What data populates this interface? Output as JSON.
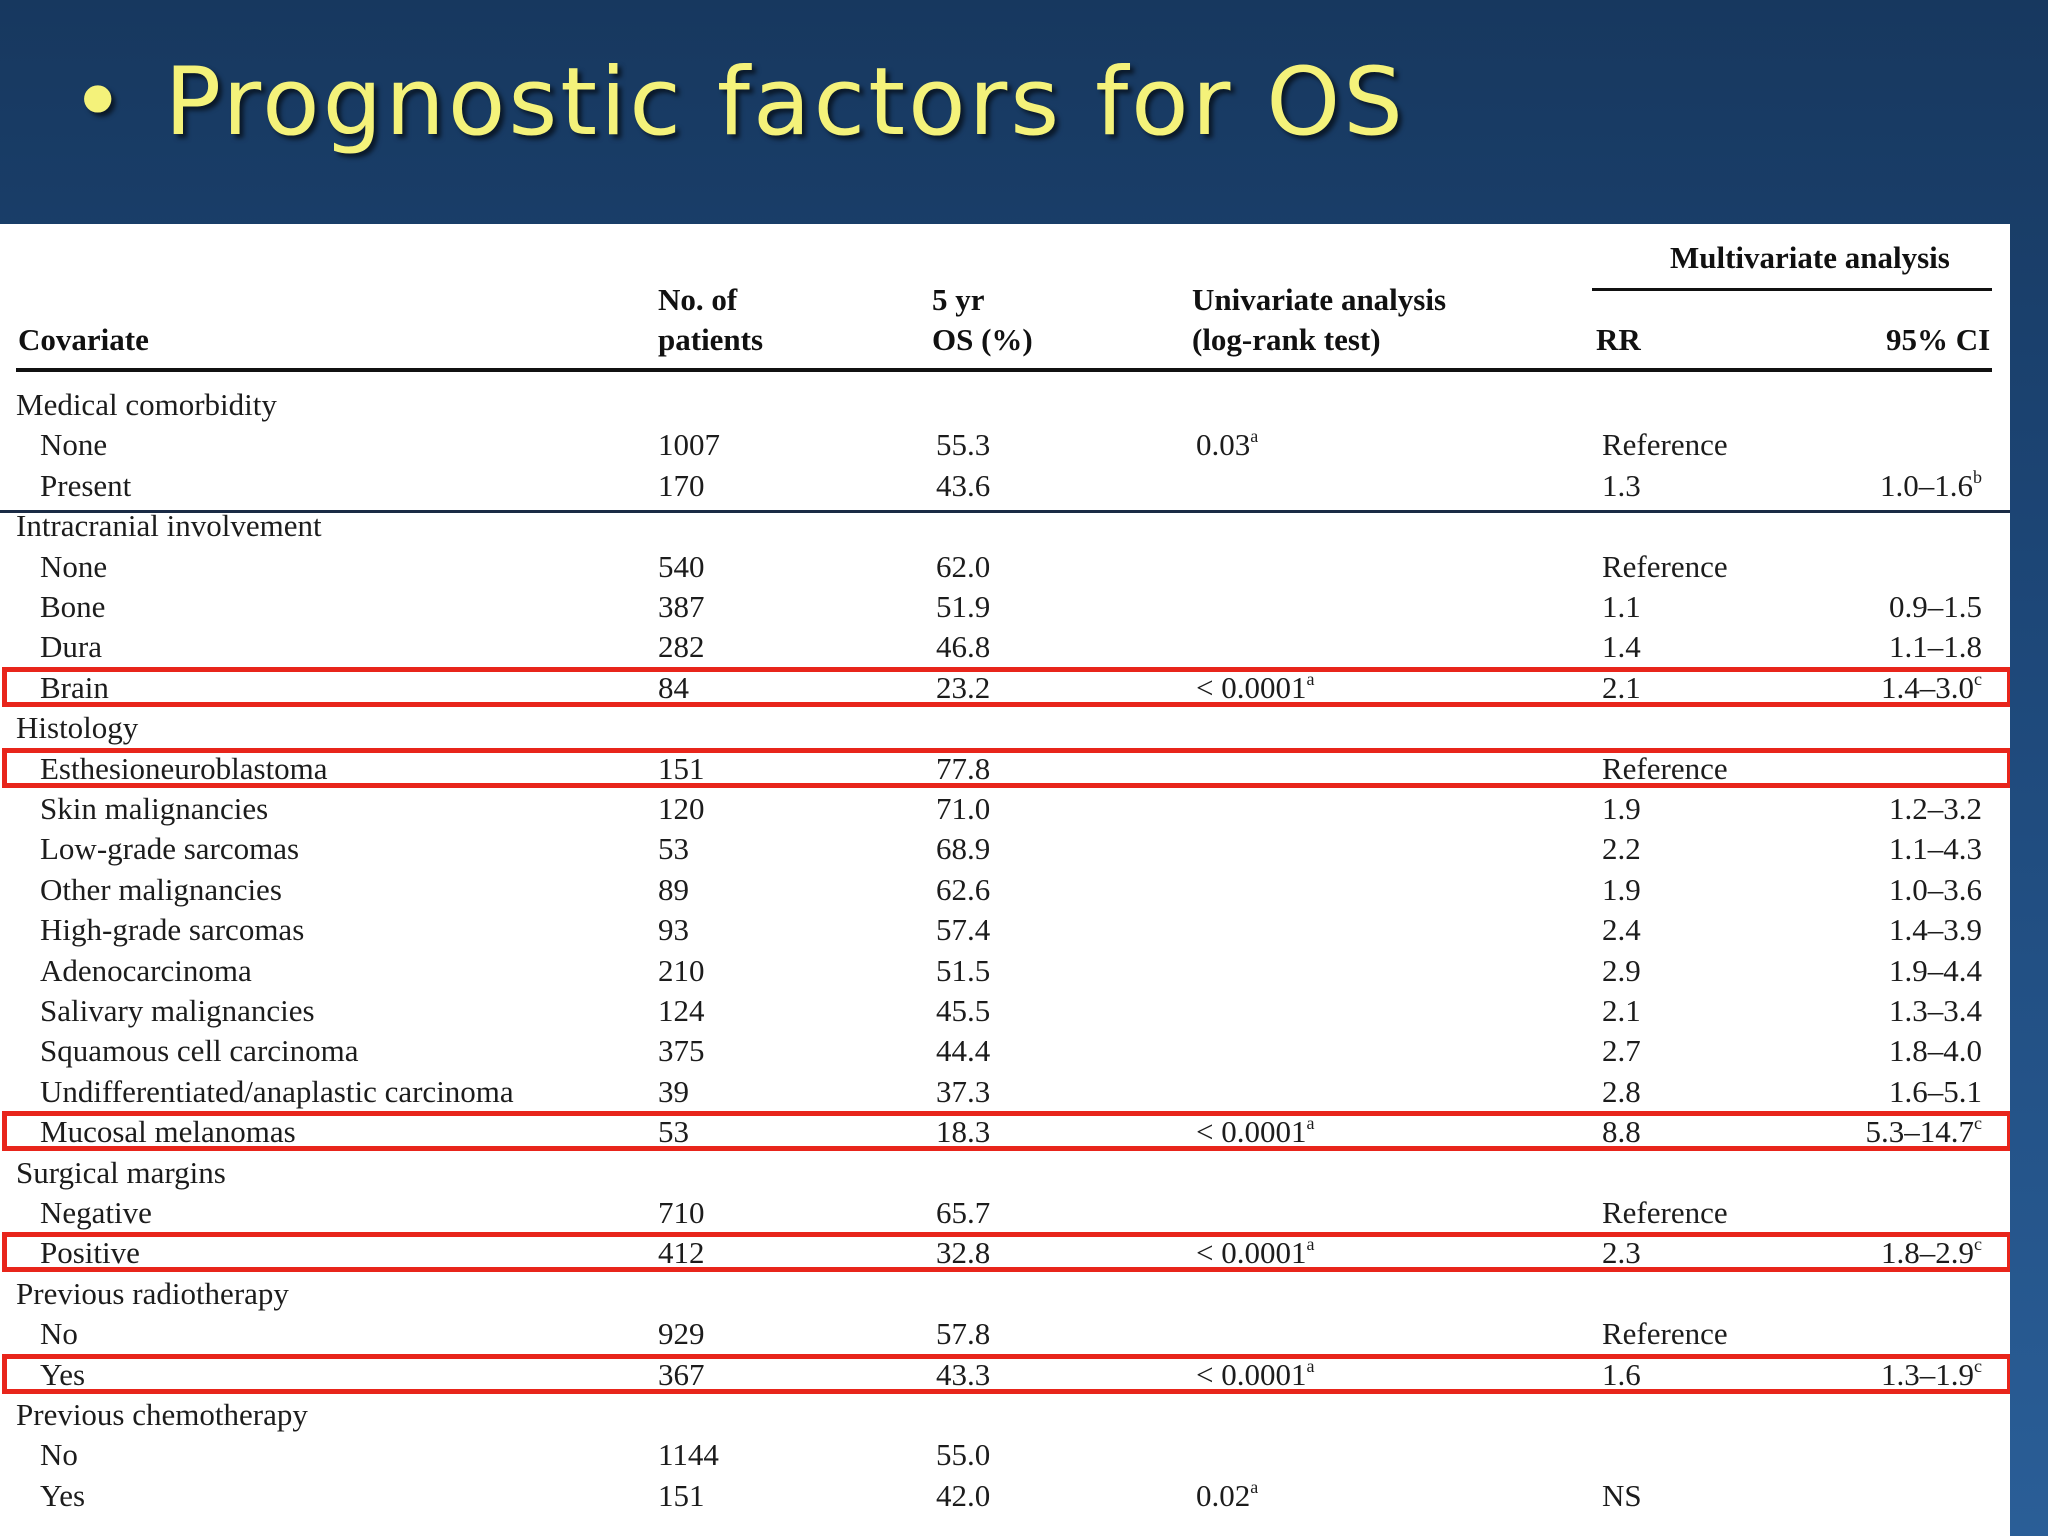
{
  "slide": {
    "title": "Prognostic factors for OS",
    "bullet": "•"
  },
  "table": {
    "headers": {
      "covariate": "Covariate",
      "patients_line1": "No. of",
      "patients_line2": "patients",
      "os_line1": "5 yr",
      "os_line2": "OS (%)",
      "univariate_line1": "Univariate analysis",
      "univariate_line2": "(log-rank test)",
      "multivariate": "Multivariate analysis",
      "rr": "RR",
      "ci": "95% CI"
    },
    "rows": [
      {
        "type": "group",
        "covariate": "Medical comorbidity"
      },
      {
        "type": "item",
        "covariate": "None",
        "n": "1007",
        "os": "55.3",
        "uni": "0.03",
        "uni_sup": "a",
        "rr": "Reference",
        "ci": "",
        "ci_sup": ""
      },
      {
        "type": "item",
        "covariate": "Present",
        "n": "170",
        "os": "43.6",
        "uni": "",
        "uni_sup": "",
        "rr": "1.3",
        "ci": "1.0–1.6",
        "ci_sup": "b"
      },
      {
        "type": "group",
        "covariate": "Intracranial involvement"
      },
      {
        "type": "item",
        "covariate": "None",
        "n": "540",
        "os": "62.0",
        "uni": "",
        "uni_sup": "",
        "rr": "Reference",
        "ci": "",
        "ci_sup": ""
      },
      {
        "type": "item",
        "covariate": "Bone",
        "n": "387",
        "os": "51.9",
        "uni": "",
        "uni_sup": "",
        "rr": "1.1",
        "ci": "0.9–1.5",
        "ci_sup": ""
      },
      {
        "type": "item",
        "covariate": "Dura",
        "n": "282",
        "os": "46.8",
        "uni": "",
        "uni_sup": "",
        "rr": "1.4",
        "ci": "1.1–1.8",
        "ci_sup": ""
      },
      {
        "type": "item",
        "covariate": "Brain",
        "n": "84",
        "os": "23.2",
        "uni": "< 0.0001",
        "uni_sup": "a",
        "rr": "2.1",
        "ci": "1.4–3.0",
        "ci_sup": "c",
        "highlighted": true
      },
      {
        "type": "group",
        "covariate": "Histology"
      },
      {
        "type": "item",
        "covariate": "Esthesioneuroblastoma",
        "n": "151",
        "os": "77.8",
        "uni": "",
        "uni_sup": "",
        "rr": "Reference",
        "ci": "",
        "ci_sup": "",
        "highlighted": true
      },
      {
        "type": "item",
        "covariate": "Skin malignancies",
        "n": "120",
        "os": "71.0",
        "uni": "",
        "uni_sup": "",
        "rr": "1.9",
        "ci": "1.2–3.2",
        "ci_sup": ""
      },
      {
        "type": "item",
        "covariate": "Low-grade sarcomas",
        "n": "53",
        "os": "68.9",
        "uni": "",
        "uni_sup": "",
        "rr": "2.2",
        "ci": "1.1–4.3",
        "ci_sup": ""
      },
      {
        "type": "item",
        "covariate": "Other malignancies",
        "n": "89",
        "os": "62.6",
        "uni": "",
        "uni_sup": "",
        "rr": "1.9",
        "ci": "1.0–3.6",
        "ci_sup": ""
      },
      {
        "type": "item",
        "covariate": "High-grade sarcomas",
        "n": "93",
        "os": "57.4",
        "uni": "",
        "uni_sup": "",
        "rr": "2.4",
        "ci": "1.4–3.9",
        "ci_sup": ""
      },
      {
        "type": "item",
        "covariate": "Adenocarcinoma",
        "n": "210",
        "os": "51.5",
        "uni": "",
        "uni_sup": "",
        "rr": "2.9",
        "ci": "1.9–4.4",
        "ci_sup": ""
      },
      {
        "type": "item",
        "covariate": "Salivary malignancies",
        "n": "124",
        "os": "45.5",
        "uni": "",
        "uni_sup": "",
        "rr": "2.1",
        "ci": "1.3–3.4",
        "ci_sup": ""
      },
      {
        "type": "item",
        "covariate": "Squamous cell carcinoma",
        "n": "375",
        "os": "44.4",
        "uni": "",
        "uni_sup": "",
        "rr": "2.7",
        "ci": "1.8–4.0",
        "ci_sup": ""
      },
      {
        "type": "item",
        "covariate": "Undifferentiated/anaplastic carcinoma",
        "n": "39",
        "os": "37.3",
        "uni": "",
        "uni_sup": "",
        "rr": "2.8",
        "ci": "1.6–5.1",
        "ci_sup": ""
      },
      {
        "type": "item",
        "covariate": "Mucosal melanomas",
        "n": "53",
        "os": "18.3",
        "uni": "< 0.0001",
        "uni_sup": "a",
        "rr": "8.8",
        "ci": "5.3–14.7",
        "ci_sup": "c",
        "highlighted": true
      },
      {
        "type": "group",
        "covariate": "Surgical margins"
      },
      {
        "type": "item",
        "covariate": "Negative",
        "n": "710",
        "os": "65.7",
        "uni": "",
        "uni_sup": "",
        "rr": "Reference",
        "ci": "",
        "ci_sup": ""
      },
      {
        "type": "item",
        "covariate": "Positive",
        "n": "412",
        "os": "32.8",
        "uni": "< 0.0001",
        "uni_sup": "a",
        "rr": "2.3",
        "ci": "1.8–2.9",
        "ci_sup": "c",
        "highlighted": true
      },
      {
        "type": "group",
        "covariate": "Previous radiotherapy"
      },
      {
        "type": "item",
        "covariate": "No",
        "n": "929",
        "os": "57.8",
        "uni": "",
        "uni_sup": "",
        "rr": "Reference",
        "ci": "",
        "ci_sup": ""
      },
      {
        "type": "item",
        "covariate": "Yes",
        "n": "367",
        "os": "43.3",
        "uni": "< 0.0001",
        "uni_sup": "a",
        "rr": "1.6",
        "ci": "1.3–1.9",
        "ci_sup": "c",
        "highlighted": true
      },
      {
        "type": "group",
        "covariate": "Previous chemotherapy"
      },
      {
        "type": "item",
        "covariate": "No",
        "n": "1144",
        "os": "55.0",
        "uni": "",
        "uni_sup": "",
        "rr": "",
        "ci": "",
        "ci_sup": ""
      },
      {
        "type": "item",
        "covariate": "Yes",
        "n": "151",
        "os": "42.0",
        "uni": "0.02",
        "uni_sup": "a",
        "rr": "NS",
        "ci": "",
        "ci_sup": ""
      }
    ]
  },
  "colors": {
    "background": "#1d4778",
    "title": "#f4f27a",
    "highlight": "#e8251b"
  }
}
